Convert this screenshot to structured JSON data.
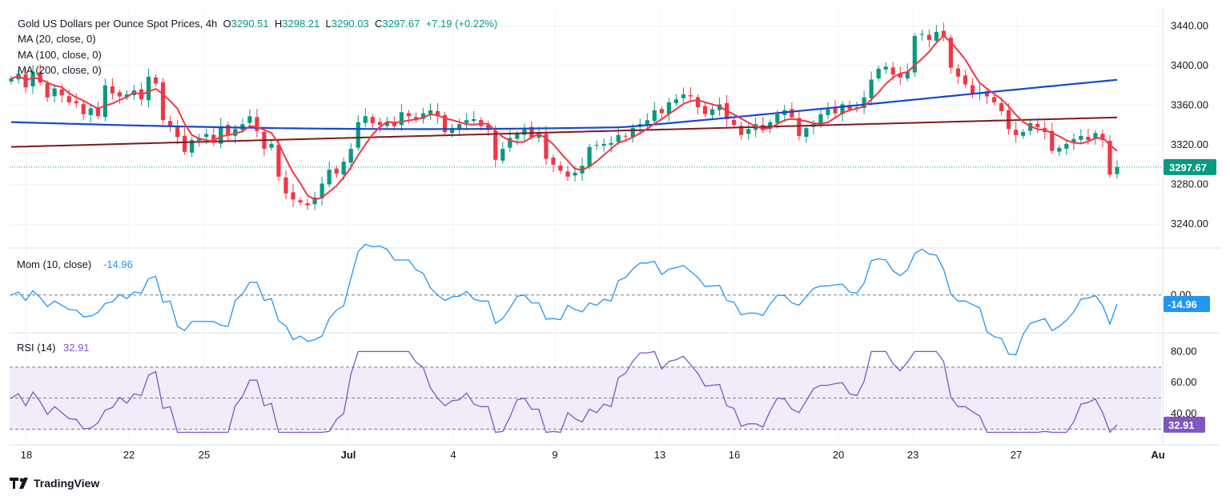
{
  "header": {
    "symbol_title": "Gold US Dollars per Ounce Spot Prices, 4h",
    "ohlc": [
      {
        "label": "O",
        "value": "3290.51"
      },
      {
        "label": "H",
        "value": "3298.21"
      },
      {
        "label": "L",
        "value": "3290.03"
      },
      {
        "label": "C",
        "value": "3297.67"
      }
    ],
    "change": "+7.19 (+0.22%)",
    "indicators": [
      "MA (20, close, 0)",
      "MA (100, close, 0)",
      "MA (200, close, 0)"
    ]
  },
  "colors": {
    "up": "#089981",
    "down": "#f23645",
    "ma20": "#f23645",
    "ma100": "#1848cc",
    "ma200": "#801922",
    "mom": "#2196f3",
    "rsi": "#7e57c2",
    "rsi_band": "#ede7f6",
    "grid": "#f0f3fa"
  },
  "chart_data": [
    {
      "type": "candlestick",
      "title": "Gold US Dollars per Ounce Spot Prices, 4h",
      "ylim": [
        3220,
        3455
      ],
      "yticks": [
        "3440.00",
        "3400.00",
        "3360.00",
        "3320.00",
        "3280.00",
        "3240.00"
      ],
      "last_price_label": "3297.67",
      "x_tick_labels": [
        "18",
        "22",
        "25",
        "Jul",
        "4",
        "9",
        "13",
        "16",
        "20",
        "23",
        "27",
        "Au"
      ],
      "series_closes": [
        3387,
        3392,
        3378,
        3394,
        3383,
        3368,
        3377,
        3370,
        3363,
        3362,
        3351,
        3357,
        3349,
        3380,
        3372,
        3369,
        3371,
        3375,
        3366,
        3389,
        3382,
        3345,
        3339,
        3328,
        3313,
        3325,
        3327,
        3331,
        3322,
        3339,
        3330,
        3336,
        3341,
        3349,
        3334,
        3316,
        3321,
        3288,
        3271,
        3265,
        3262,
        3259,
        3267,
        3281,
        3295,
        3291,
        3303,
        3316,
        3343,
        3349,
        3342,
        3340,
        3343,
        3339,
        3353,
        3349,
        3345,
        3352,
        3355,
        3349,
        3333,
        3337,
        3341,
        3345,
        3346,
        3339,
        3335,
        3305,
        3316,
        3327,
        3331,
        3337,
        3328,
        3332,
        3306,
        3300,
        3294,
        3288,
        3292,
        3299,
        3318,
        3320,
        3321,
        3322,
        3330,
        3329,
        3337,
        3341,
        3345,
        3355,
        3352,
        3363,
        3366,
        3371,
        3369,
        3358,
        3351,
        3356,
        3361,
        3346,
        3340,
        3330,
        3336,
        3341,
        3335,
        3343,
        3351,
        3355,
        3348,
        3329,
        3337,
        3341,
        3351,
        3356,
        3352,
        3361,
        3356,
        3358,
        3368,
        3386,
        3397,
        3399,
        3391,
        3388,
        3394,
        3430,
        3432,
        3426,
        3434,
        3429,
        3398,
        3389,
        3381,
        3372,
        3373,
        3369,
        3363,
        3354,
        3336,
        3330,
        3333,
        3342,
        3338,
        3333,
        3314,
        3317,
        3321,
        3326,
        3329,
        3325,
        3332,
        3325,
        3290,
        3297.67
      ],
      "series": [
        {
          "name": "MA (20, close, 0)"
        },
        {
          "name": "MA (100, close, 0)"
        },
        {
          "name": "MA (200, close, 0)"
        }
      ]
    },
    {
      "type": "line",
      "title": "Mom (10, close)",
      "last_value": "-14.96",
      "zero_label": "0.00",
      "reference": 0,
      "ylim": [
        -60,
        70
      ]
    },
    {
      "type": "line",
      "title": "RSI (14)",
      "last_value": "32.91",
      "yticks": [
        "80.00",
        "60.00",
        "40.00"
      ],
      "band": [
        30,
        70
      ],
      "midline": 50,
      "ylim": [
        22,
        90
      ]
    }
  ],
  "branding": {
    "logo_text": "TradingView"
  }
}
